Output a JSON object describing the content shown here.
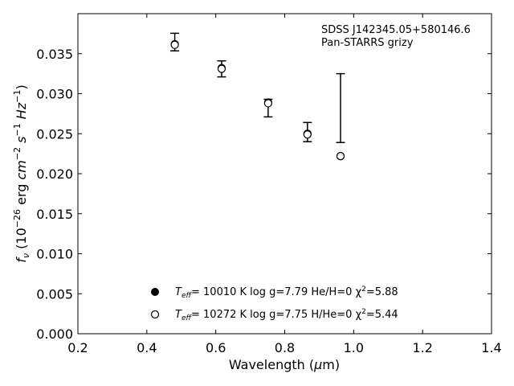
{
  "chart_data": {
    "type": "scatter",
    "title": "",
    "xlabel": "Wavelength (μm)",
    "ylabel": "f_ν (10^-26 erg cm^-2 s^-1 Hz^-1)",
    "xlim": [
      0.2,
      1.4
    ],
    "ylim": [
      0.0,
      0.04
    ],
    "xticks": [
      0.2,
      0.4,
      0.6,
      0.8,
      1.0,
      1.2,
      1.4
    ],
    "xtick_labels": [
      "0.2",
      "0.4",
      "0.6",
      "0.8",
      "1.0",
      "1.2",
      "1.4"
    ],
    "yticks": [
      0.0,
      0.005,
      0.01,
      0.015,
      0.02,
      0.025,
      0.03,
      0.035
    ],
    "ytick_labels": [
      "0.000",
      "0.005",
      "0.010",
      "0.015",
      "0.020",
      "0.025",
      "0.030",
      "0.035"
    ],
    "grid": false,
    "annotation": {
      "line1": "SDSS J142345.05+580146.6",
      "line2": "Pan-STARRS grizy"
    },
    "observed": {
      "x": [
        0.481,
        0.617,
        0.752,
        0.866,
        0.962
      ],
      "y": [
        0.03645,
        0.0331,
        0.0282,
        0.0252,
        0.0282
      ],
      "yerr": [
        0.0011,
        0.001,
        0.0011,
        0.0012,
        0.0043
      ]
    },
    "series": [
      {
        "name": "He/H=0",
        "marker": "filled-circle",
        "x": [
          0.481,
          0.617,
          0.752,
          0.866,
          0.962
        ],
        "y": [
          0.0362,
          0.0332,
          0.0289,
          0.025,
          0.0222
        ]
      },
      {
        "name": "H/He=0",
        "marker": "open-circle",
        "x": [
          0.481,
          0.617,
          0.752,
          0.866,
          0.962
        ],
        "y": [
          0.0361,
          0.0331,
          0.0288,
          0.0249,
          0.0222
        ]
      }
    ],
    "legend": {
      "placement": "lower-center",
      "entries": [
        {
          "teff_prefix": "T",
          "teff_sub": "eff",
          "text": "= 10010 K  log g=7.79  He/H=0  χ",
          "chi_sup": "2",
          "chi_val": "=5.88",
          "marker": "filled-circle"
        },
        {
          "teff_prefix": "T",
          "teff_sub": "eff",
          "text": "= 10272 K  log g=7.75  H/He=0  χ",
          "chi_sup": "2",
          "chi_val": "=5.44",
          "marker": "open-circle"
        }
      ]
    },
    "colors": {
      "ink": "#000000",
      "background": "#ffffff"
    }
  }
}
